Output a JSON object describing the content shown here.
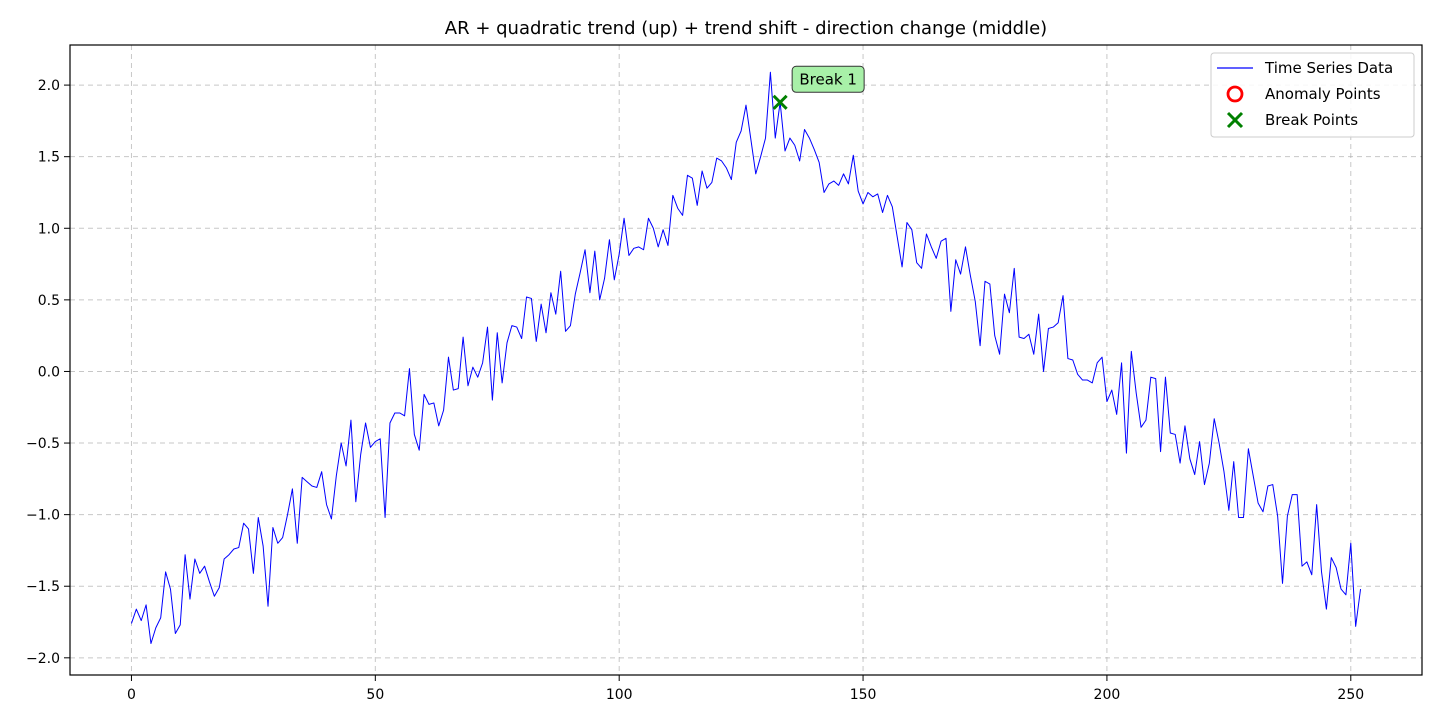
{
  "chart_data": {
    "type": "line",
    "title": "AR + quadratic trend (up) + trend shift - direction change (middle)",
    "xlabel": "",
    "ylabel": "",
    "xlim": [
      -12.6,
      264.6
    ],
    "ylim": [
      -2.12,
      2.28
    ],
    "x_ticks": [
      0,
      50,
      100,
      150,
      200,
      250
    ],
    "y_ticks": [
      -2.0,
      -1.5,
      -1.0,
      -0.5,
      0.0,
      0.5,
      1.0,
      1.5,
      2.0
    ],
    "x_tick_labels": [
      "0",
      "50",
      "100",
      "150",
      "200",
      "250"
    ],
    "y_tick_labels": [
      "−2.0",
      "−1.5",
      "−1.0",
      "−0.5",
      "0.0",
      "0.5",
      "1.0",
      "1.5",
      "2.0"
    ],
    "grid": true,
    "legend_position": "top-right",
    "legend": [
      {
        "label": "Time Series Data",
        "marker": "line",
        "color": "#0000ff"
      },
      {
        "label": "Anomaly Points",
        "marker": "circle",
        "color": "#ff0000"
      },
      {
        "label": "Break Points",
        "marker": "x",
        "color": "#008000"
      }
    ],
    "series": [
      {
        "name": "Time Series Data",
        "color": "#0000ff",
        "x_start": 0,
        "x_step": 1,
        "values": [
          -1.76,
          -1.66,
          -1.74,
          -1.63,
          -1.9,
          -1.79,
          -1.72,
          -1.4,
          -1.52,
          -1.83,
          -1.77,
          -1.28,
          -1.59,
          -1.31,
          -1.41,
          -1.36,
          -1.47,
          -1.57,
          -1.51,
          -1.31,
          -1.28,
          -1.24,
          -1.23,
          -1.06,
          -1.1,
          -1.41,
          -1.02,
          -1.22,
          -1.64,
          -1.09,
          -1.2,
          -1.16,
          -1.0,
          -0.82,
          -1.2,
          -0.74,
          -0.77,
          -0.8,
          -0.81,
          -0.7,
          -0.93,
          -1.03,
          -0.73,
          -0.5,
          -0.66,
          -0.34,
          -0.91,
          -0.58,
          -0.36,
          -0.53,
          -0.49,
          -0.47,
          -1.02,
          -0.36,
          -0.29,
          -0.29,
          -0.31,
          0.02,
          -0.44,
          -0.55,
          -0.16,
          -0.23,
          -0.22,
          -0.38,
          -0.27,
          0.1,
          -0.13,
          -0.12,
          0.24,
          -0.1,
          0.03,
          -0.04,
          0.06,
          0.31,
          -0.2,
          0.27,
          -0.08,
          0.2,
          0.32,
          0.31,
          0.23,
          0.52,
          0.51,
          0.21,
          0.47,
          0.27,
          0.55,
          0.4,
          0.7,
          0.28,
          0.32,
          0.54,
          0.69,
          0.85,
          0.55,
          0.84,
          0.5,
          0.65,
          0.92,
          0.64,
          0.82,
          1.07,
          0.81,
          0.86,
          0.87,
          0.85,
          1.07,
          1.0,
          0.87,
          0.99,
          0.88,
          1.23,
          1.14,
          1.09,
          1.37,
          1.35,
          1.16,
          1.4,
          1.28,
          1.32,
          1.49,
          1.47,
          1.42,
          1.34,
          1.6,
          1.68,
          1.86,
          1.62,
          1.38,
          1.5,
          1.63,
          2.09,
          1.63,
          1.88,
          1.54,
          1.63,
          1.58,
          1.47,
          1.69,
          1.63,
          1.55,
          1.46,
          1.25,
          1.31,
          1.33,
          1.3,
          1.38,
          1.31,
          1.51,
          1.26,
          1.17,
          1.25,
          1.22,
          1.24,
          1.11,
          1.23,
          1.15,
          0.94,
          0.73,
          1.04,
          0.99,
          0.76,
          0.72,
          0.96,
          0.87,
          0.79,
          0.91,
          0.93,
          0.42,
          0.78,
          0.68,
          0.87,
          0.67,
          0.49,
          0.18,
          0.63,
          0.61,
          0.25,
          0.12,
          0.54,
          0.41,
          0.72,
          0.24,
          0.23,
          0.26,
          0.12,
          0.4,
          0.0,
          0.3,
          0.31,
          0.34,
          0.53,
          0.09,
          0.08,
          -0.02,
          -0.06,
          -0.06,
          -0.08,
          0.06,
          0.1,
          -0.21,
          -0.13,
          -0.3,
          0.06,
          -0.57,
          0.14,
          -0.15,
          -0.39,
          -0.34,
          -0.04,
          -0.05,
          -0.56,
          -0.04,
          -0.43,
          -0.44,
          -0.64,
          -0.38,
          -0.61,
          -0.72,
          -0.49,
          -0.79,
          -0.64,
          -0.33,
          -0.5,
          -0.7,
          -0.97,
          -0.63,
          -1.02,
          -1.02,
          -0.54,
          -0.73,
          -0.92,
          -0.98,
          -0.8,
          -0.79,
          -1.01,
          -1.48,
          -1.01,
          -0.86,
          -0.86,
          -1.36,
          -1.33,
          -1.42,
          -0.93,
          -1.4,
          -1.66,
          -1.3,
          -1.37,
          -1.52,
          -1.56,
          -1.2,
          -1.78,
          -1.52
        ]
      }
    ],
    "anomaly_points": [],
    "break_points": [
      {
        "x": 133,
        "y": 1.88,
        "label": "Break 1"
      }
    ]
  }
}
